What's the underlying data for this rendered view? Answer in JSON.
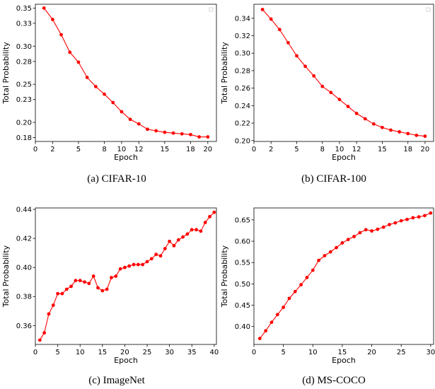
{
  "chart_data": [
    {
      "type": "line",
      "xlabel": "Epoch",
      "ylabel": "Total Probability",
      "caption": "(a)  CIFAR-10",
      "xlim": [
        0,
        21
      ],
      "ylim": [
        0.175,
        0.355
      ],
      "xticks": [
        0,
        2,
        5,
        8,
        10,
        12,
        15,
        18,
        20
      ],
      "yticks": [
        0.18,
        0.2,
        0.23,
        0.25,
        0.28,
        0.3,
        0.33,
        0.35
      ],
      "ytick_labels": [
        "0.18",
        "0.20",
        "0.23",
        "0.25",
        "0.28",
        "0.30",
        "0.33",
        "0.35"
      ],
      "legend": "top-right",
      "color": "#ff0000",
      "series": [
        {
          "x": [
            1,
            2,
            3,
            4,
            5,
            6,
            7,
            8,
            9,
            10,
            11,
            12,
            13,
            14,
            15,
            16,
            17,
            18,
            19,
            20
          ],
          "y": [
            0.35,
            0.335,
            0.315,
            0.292,
            0.279,
            0.259,
            0.247,
            0.237,
            0.226,
            0.214,
            0.204,
            0.198,
            0.191,
            0.189,
            0.187,
            0.186,
            0.185,
            0.184,
            0.181,
            0.181
          ]
        }
      ]
    },
    {
      "type": "line",
      "xlabel": "Epoch",
      "ylabel": "Total Probability",
      "caption": "(b)  CIFAR-100",
      "xlim": [
        0,
        21
      ],
      "ylim": [
        0.199,
        0.356
      ],
      "xticks": [
        0,
        2,
        5,
        8,
        10,
        12,
        15,
        18,
        20
      ],
      "yticks": [
        0.2,
        0.22,
        0.24,
        0.26,
        0.28,
        0.3,
        0.32,
        0.34
      ],
      "ytick_labels": [
        "0.20",
        "0.22",
        "0.24",
        "0.26",
        "0.28",
        "0.30",
        "0.32",
        "0.34"
      ],
      "legend": "top-right",
      "color": "#ff0000",
      "series": [
        {
          "x": [
            1,
            2,
            3,
            4,
            5,
            6,
            7,
            8,
            9,
            10,
            11,
            12,
            13,
            14,
            15,
            16,
            17,
            18,
            19,
            20
          ],
          "y": [
            0.35,
            0.339,
            0.327,
            0.312,
            0.297,
            0.285,
            0.274,
            0.262,
            0.255,
            0.247,
            0.239,
            0.231,
            0.225,
            0.219,
            0.215,
            0.212,
            0.21,
            0.208,
            0.206,
            0.205
          ]
        }
      ]
    },
    {
      "type": "line",
      "xlabel": "Epoch",
      "ylabel": "Total Probability",
      "caption": "(c)  ImageNet",
      "xlim": [
        0,
        40.5
      ],
      "ylim": [
        0.347,
        0.441
      ],
      "xticks": [
        0,
        5,
        10,
        15,
        20,
        25,
        30,
        35,
        40
      ],
      "yticks": [
        0.36,
        0.38,
        0.4,
        0.42,
        0.44
      ],
      "ytick_labels": [
        "0.36",
        "0.38",
        "0.40",
        "0.42",
        "0.44"
      ],
      "color": "#ff0000",
      "series": [
        {
          "x": [
            1,
            2,
            3,
            4,
            5,
            6,
            7,
            8,
            9,
            10,
            11,
            12,
            13,
            14,
            15,
            16,
            17,
            18,
            19,
            20,
            21,
            22,
            23,
            24,
            25,
            26,
            27,
            28,
            29,
            30,
            31,
            32,
            33,
            34,
            35,
            36,
            37,
            38,
            39,
            40
          ],
          "y": [
            0.35,
            0.355,
            0.368,
            0.374,
            0.382,
            0.382,
            0.385,
            0.387,
            0.391,
            0.391,
            0.39,
            0.389,
            0.394,
            0.386,
            0.384,
            0.385,
            0.393,
            0.394,
            0.399,
            0.4,
            0.401,
            0.402,
            0.402,
            0.402,
            0.404,
            0.406,
            0.409,
            0.408,
            0.413,
            0.418,
            0.415,
            0.419,
            0.421,
            0.423,
            0.426,
            0.426,
            0.425,
            0.431,
            0.435,
            0.438
          ]
        }
      ]
    },
    {
      "type": "line",
      "xlabel": "Epoch",
      "ylabel": "Total Probability",
      "caption": "(d)  MS-COCO",
      "xlim": [
        0,
        30.5
      ],
      "ylim": [
        0.358,
        0.678
      ],
      "xticks": [
        0,
        5,
        10,
        15,
        20,
        25,
        30
      ],
      "yticks": [
        0.4,
        0.45,
        0.5,
        0.55,
        0.6,
        0.65
      ],
      "ytick_labels": [
        "0.40",
        "0.45",
        "0.50",
        "0.55",
        "0.60",
        "0.65"
      ],
      "color": "#ff0000",
      "series": [
        {
          "x": [
            1,
            2,
            3,
            4,
            5,
            6,
            7,
            8,
            9,
            10,
            11,
            12,
            13,
            14,
            15,
            16,
            17,
            18,
            19,
            20,
            21,
            22,
            23,
            24,
            25,
            26,
            27,
            28,
            29,
            30
          ],
          "y": [
            0.372,
            0.39,
            0.41,
            0.428,
            0.445,
            0.466,
            0.482,
            0.498,
            0.515,
            0.532,
            0.555,
            0.566,
            0.575,
            0.585,
            0.596,
            0.604,
            0.611,
            0.62,
            0.627,
            0.624,
            0.628,
            0.633,
            0.639,
            0.643,
            0.648,
            0.651,
            0.655,
            0.657,
            0.66,
            0.666
          ]
        }
      ]
    }
  ]
}
